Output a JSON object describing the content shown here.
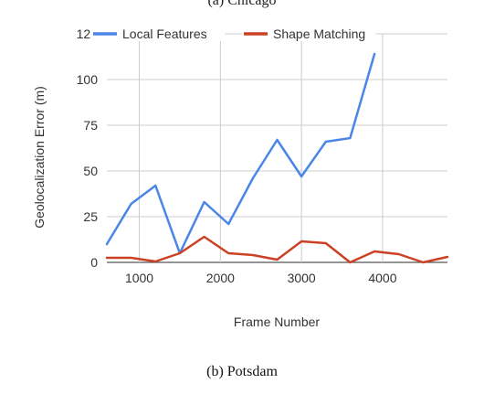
{
  "caption_above_fragment": "(a) Chicago",
  "caption": "(b) Potsdam",
  "chart_data": {
    "type": "line",
    "title": "",
    "xlabel": "Frame Number",
    "ylabel": "Geolocalization Error (m)",
    "xlim": [
      600,
      4800
    ],
    "ylim": [
      0,
      125
    ],
    "xticks": [
      1000,
      2000,
      3000,
      4000
    ],
    "yticks": [
      0,
      25,
      50,
      75,
      100,
      125
    ],
    "grid": true,
    "legend_position": "top",
    "series": [
      {
        "name": "Local Features",
        "color": "#4a86e8",
        "x": [
          600,
          900,
          1200,
          1500,
          1800,
          2100,
          2400,
          2700,
          3000,
          3300,
          3600,
          3900
        ],
        "y": [
          10,
          32,
          42,
          5,
          33,
          21,
          46,
          67,
          47,
          66,
          68,
          114
        ]
      },
      {
        "name": "Shape Matching",
        "color": "#cc4125",
        "x": [
          600,
          900,
          1200,
          1500,
          1800,
          2100,
          2400,
          2700,
          3000,
          3300,
          3600,
          3900,
          4200,
          4500,
          4800
        ],
        "y": [
          2.5,
          2.5,
          0.5,
          5,
          14,
          5,
          4,
          1.5,
          11.5,
          10.5,
          0,
          6,
          4.5,
          0,
          3
        ]
      }
    ]
  }
}
